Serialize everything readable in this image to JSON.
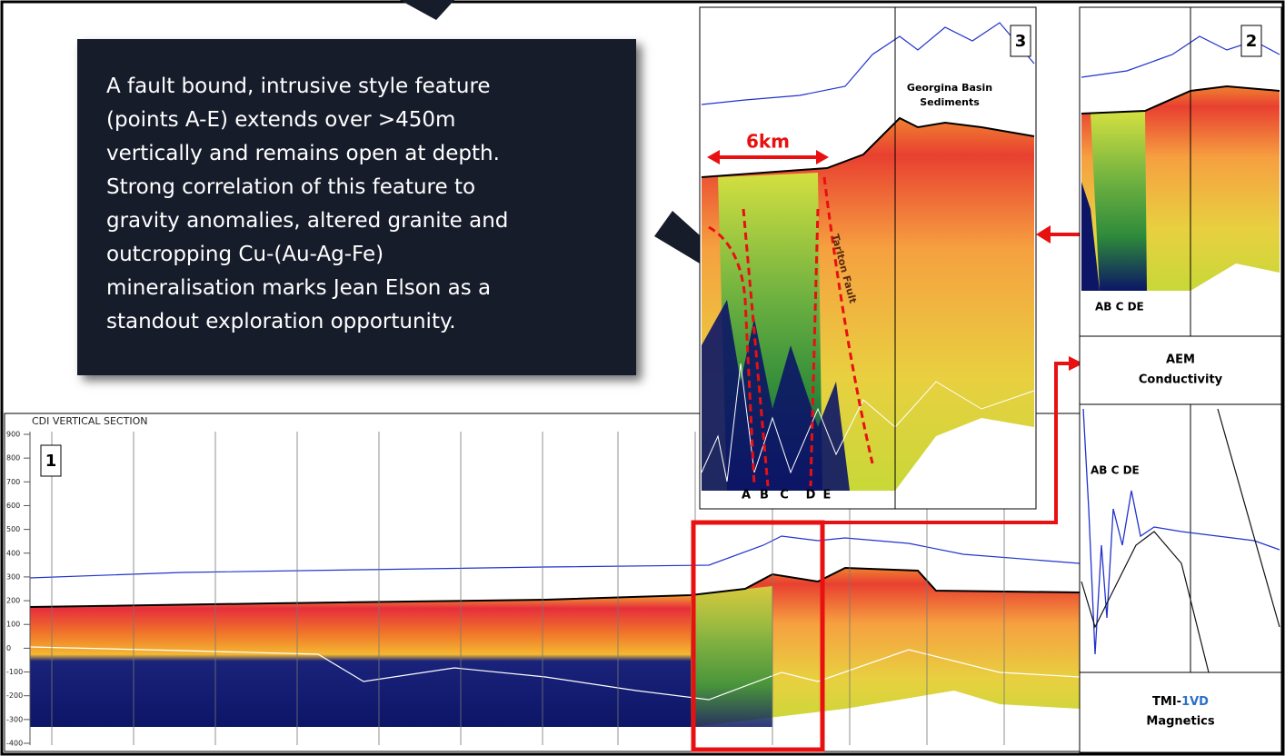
{
  "callout": {
    "lines": [
      "A fault bound, intrusive style feature",
      "(points A-E) extends over >450m",
      "vertically and remains open at depth.",
      "Strong correlation of this feature to",
      "gravity anomalies, altered granite and",
      "outcropping Cu-(Au-Ag-Fe)",
      "mineralisation marks Jean Elson as a",
      "standout exploration opportunity."
    ]
  },
  "panel1": {
    "number": "1",
    "title": "CDI VERTICAL SECTION",
    "y_axis_labels": [
      900,
      800,
      700,
      600,
      500,
      400,
      300,
      200,
      100,
      0,
      -100,
      -200,
      -300,
      -400
    ]
  },
  "panel3": {
    "number": "3",
    "distance_label": "6km",
    "sediments_label": [
      "Georgina Basin",
      "Sediments"
    ],
    "fault_label": "Tarlton Fault",
    "point_labels": [
      "A",
      "B",
      "C",
      "D",
      "E"
    ]
  },
  "panel2": {
    "number": "2",
    "point_labels": "AB C DE",
    "aem_label": [
      "AEM",
      "Conductivity"
    ]
  },
  "tmi": {
    "point_labels": "AB C DE",
    "label_prefix": "TMI-",
    "label_highlight": "1VD",
    "label_suffix": "Magnetics"
  }
}
